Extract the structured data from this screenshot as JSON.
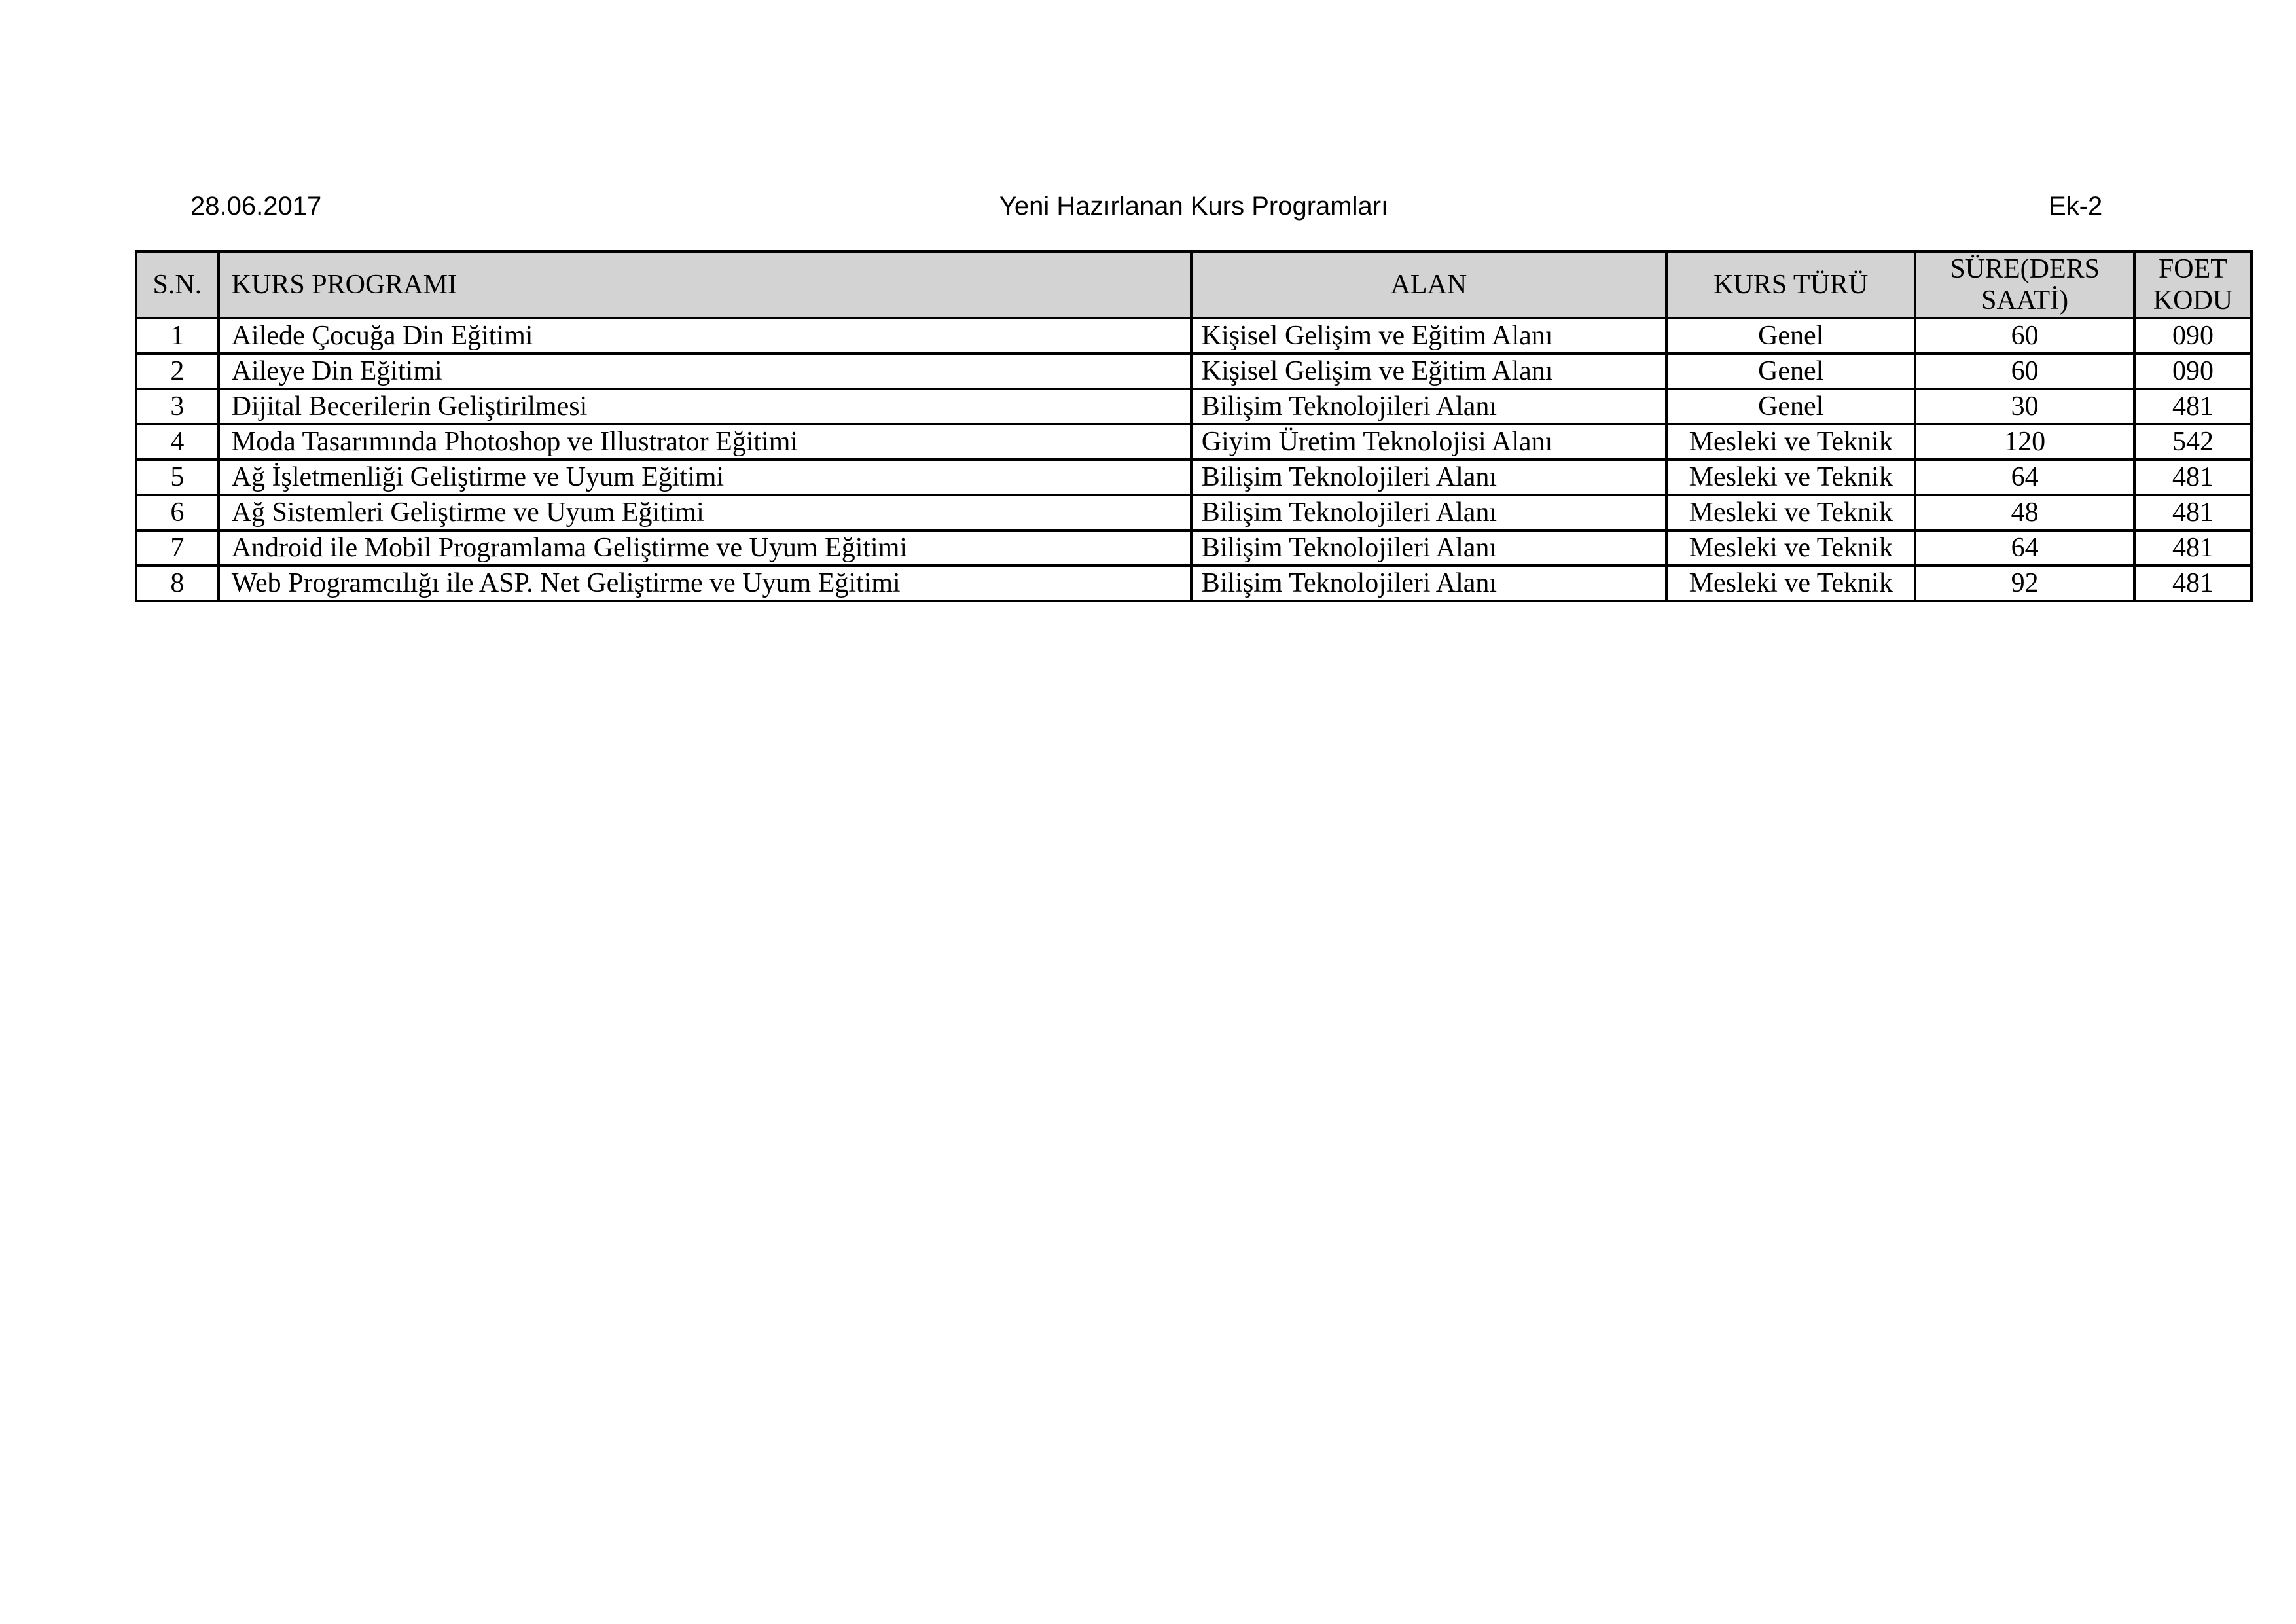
{
  "page": {
    "date": "28.06.2017",
    "title": "Yeni Hazırlanan Kurs Programları",
    "annex": "Ek-2"
  },
  "colors": {
    "header_background": "#d3d3d3",
    "border": "#000000",
    "text": "#000000",
    "page_background": "#ffffff"
  },
  "table": {
    "headers": [
      "S.N.",
      "KURS PROGRAMI",
      "ALAN",
      "KURS TÜRÜ",
      "SÜRE(DERS SAATİ)",
      "FOET KODU"
    ],
    "rows": [
      [
        "1",
        "Ailede Çocuğa Din Eğitimi",
        "Kişisel Gelişim ve Eğitim Alanı",
        "Genel",
        "60",
        "090"
      ],
      [
        "2",
        "Aileye Din Eğitimi",
        "Kişisel Gelişim ve Eğitim Alanı",
        "Genel",
        "60",
        "090"
      ],
      [
        "3",
        "Dijital Becerilerin Geliştirilmesi",
        "Bilişim Teknolojileri Alanı",
        "Genel",
        "30",
        "481"
      ],
      [
        "4",
        "Moda Tasarımında Photoshop ve Illustrator Eğitimi",
        "Giyim Üretim Teknolojisi Alanı",
        "Mesleki ve Teknik",
        "120",
        "542"
      ],
      [
        "5",
        "Ağ İşletmenliği Geliştirme ve Uyum Eğitimi",
        "Bilişim Teknolojileri Alanı",
        "Mesleki ve Teknik",
        "64",
        "481"
      ],
      [
        "6",
        "Ağ Sistemleri Geliştirme ve Uyum Eğitimi",
        "Bilişim Teknolojileri Alanı",
        "Mesleki ve Teknik",
        "48",
        "481"
      ],
      [
        "7",
        "Android ile Mobil Programlama Geliştirme ve Uyum Eğitimi",
        "Bilişim Teknolojileri Alanı",
        "Mesleki ve Teknik",
        "64",
        "481"
      ],
      [
        "8",
        "Web Programcılığı ile ASP. Net Geliştirme ve Uyum Eğitimi",
        "Bilişim Teknolojileri Alanı",
        "Mesleki ve Teknik",
        "92",
        "481"
      ]
    ]
  }
}
